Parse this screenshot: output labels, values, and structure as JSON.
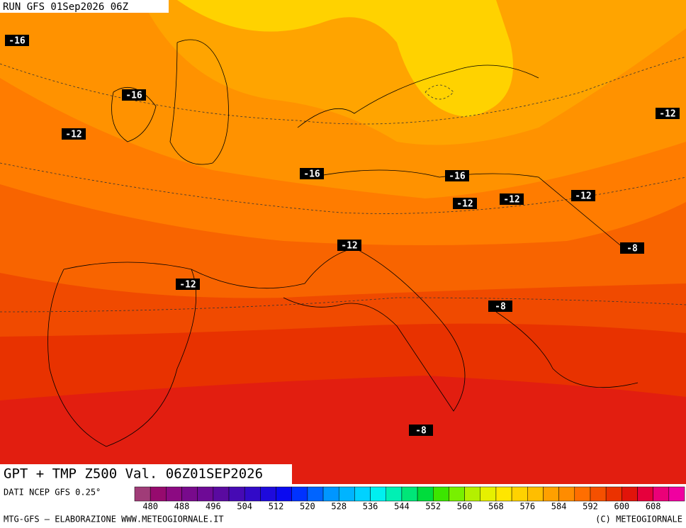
{
  "header": {
    "run": "RUN GFS 01Sep2026 06Z"
  },
  "map": {
    "contour_labels": [
      "-16",
      "-16",
      "-16",
      "-16",
      "-12",
      "-12",
      "-12",
      "-12",
      "-12",
      "-12",
      "-12",
      "-8",
      "-8",
      "-8"
    ]
  },
  "footer": {
    "title": "GPT + TMP Z500 Val. 06Z01SEP2026",
    "source": "DATI NCEP GFS 0.25°",
    "colorbar": {
      "ticks": [
        480,
        488,
        496,
        504,
        512,
        520,
        528,
        536,
        544,
        552,
        560,
        568,
        576,
        584,
        592,
        600,
        608
      ],
      "colors": [
        "#a03c78",
        "#960a6e",
        "#8c0a82",
        "#780a8c",
        "#6e0a96",
        "#5a0aa0",
        "#460ab4",
        "#320ac8",
        "#1e0adc",
        "#0a0af0",
        "#0032ff",
        "#0064ff",
        "#0096ff",
        "#00b4ff",
        "#00d2ff",
        "#00f0f0",
        "#00f0b4",
        "#00e678",
        "#00dc3c",
        "#3ce600",
        "#78f000",
        "#b4f000",
        "#e6f000",
        "#ffe600",
        "#ffd200",
        "#ffbe00",
        "#ffa000",
        "#ff8c00",
        "#ff6e00",
        "#f55000",
        "#eb3200",
        "#e1140a",
        "#e6003c",
        "#eb0078",
        "#f000a0"
      ]
    },
    "credit_left": "MTG-GFS – ELABORAZIONE WWW.METEOGIORNALE.IT",
    "credit_right": "(C) METEOGIORNALE"
  }
}
